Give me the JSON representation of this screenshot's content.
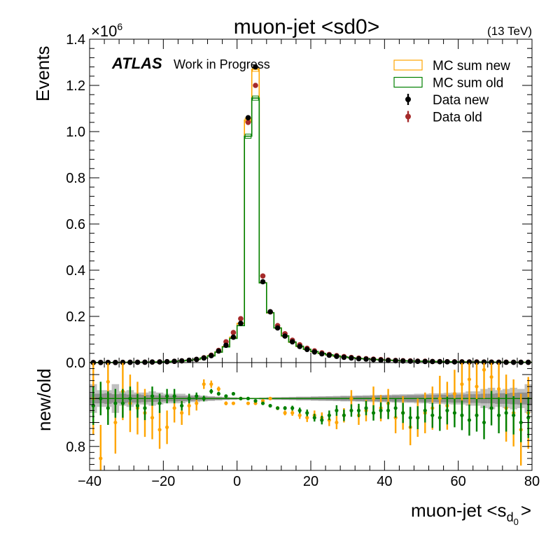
{
  "chart_data": {
    "type": "line",
    "title": "muon-jet <sd0>",
    "energy_label": "(13 TeV)",
    "atlas_label": "ATLAS",
    "atlas_sublabel": "Work in Progress",
    "y_multiplier": "×10",
    "y_multiplier_exp": "6",
    "ylabel": "Events",
    "ratio_ylabel": "new/old",
    "xlabel_main": "muon-jet <s",
    "xlabel_sub_d": "d",
    "xlabel_sub_0": "0",
    "xlabel_tail": ">",
    "xlim": [
      -40,
      80
    ],
    "ylim": [
      0,
      1.4
    ],
    "ratio_ylim": [
      0.7,
      1.15
    ],
    "x_ticks": [
      "−40",
      "−20",
      "0",
      "20",
      "40",
      "60",
      "80"
    ],
    "y_ticks": [
      "0.0",
      "0.2",
      "0.4",
      "0.6",
      "0.8",
      "1.0",
      "1.2",
      "1.4"
    ],
    "ratio_y_ticks": [
      "0.8"
    ],
    "legend": {
      "placement": "top-right",
      "entries": [
        {
          "label": "MC sum new",
          "kind": "box",
          "color": "#ffa500"
        },
        {
          "label": "MC sum old",
          "kind": "box",
          "color": "#008000"
        },
        {
          "label": "Data new",
          "kind": "marker",
          "color": "#000000"
        },
        {
          "label": "Data old",
          "kind": "marker",
          "color": "#a52a2a"
        }
      ]
    },
    "colors": {
      "mc_new": "#ffa500",
      "mc_old": "#008000",
      "data_new": "#000000",
      "data_old": "#a52a2a",
      "band_dark": "#808080",
      "band_light": "#c0c0c0"
    },
    "bin_width": 2,
    "bins_left_edge": -40,
    "series": [
      {
        "name": "MC sum new",
        "values": [
          0.0004,
          0.0005,
          0.0006,
          0.0007,
          0.0009,
          0.0011,
          0.0014,
          0.0018,
          0.0023,
          0.003,
          0.004,
          0.0055,
          0.0075,
          0.01,
          0.014,
          0.02,
          0.03,
          0.046,
          0.07,
          0.11,
          0.17,
          1.05,
          1.27,
          0.345,
          0.215,
          0.15,
          0.115,
          0.088,
          0.07,
          0.057,
          0.047,
          0.039,
          0.033,
          0.028,
          0.024,
          0.021,
          0.018,
          0.016,
          0.014,
          0.012,
          0.0105,
          0.0092,
          0.008,
          0.007,
          0.0062,
          0.0055,
          0.0049,
          0.0044,
          0.0039,
          0.0035,
          0.0031,
          0.0028,
          0.0025,
          0.0022,
          0.002,
          0.0018,
          0.0016,
          0.0014,
          0.0013,
          0.0012
        ]
      },
      {
        "name": "MC sum old",
        "values": [
          0.0004,
          0.0005,
          0.0006,
          0.0007,
          0.0009,
          0.0011,
          0.0014,
          0.0018,
          0.0023,
          0.003,
          0.004,
          0.0055,
          0.0075,
          0.01,
          0.014,
          0.02,
          0.029,
          0.045,
          0.068,
          0.105,
          0.16,
          0.98,
          1.145,
          0.345,
          0.216,
          0.15,
          0.116,
          0.089,
          0.071,
          0.058,
          0.048,
          0.04,
          0.034,
          0.029,
          0.025,
          0.021,
          0.018,
          0.016,
          0.014,
          0.012,
          0.0105,
          0.0092,
          0.008,
          0.007,
          0.0062,
          0.0055,
          0.0049,
          0.0044,
          0.0039,
          0.0035,
          0.0031,
          0.0028,
          0.0025,
          0.0022,
          0.002,
          0.0018,
          0.0016,
          0.0014,
          0.0013,
          0.0012
        ]
      },
      {
        "name": "Data new",
        "values": [
          0.0004,
          0.0005,
          0.0006,
          0.0007,
          0.0009,
          0.0011,
          0.0014,
          0.0018,
          0.0023,
          0.003,
          0.004,
          0.0055,
          0.0075,
          0.01,
          0.014,
          0.02,
          0.03,
          0.05,
          0.075,
          0.11,
          0.17,
          1.06,
          1.28,
          0.35,
          0.22,
          0.15,
          0.115,
          0.09,
          0.07,
          0.057,
          0.046,
          0.038,
          0.032,
          0.027,
          0.023,
          0.02,
          0.017,
          0.015,
          0.013,
          0.011,
          0.0095,
          0.0082,
          0.007,
          0.0062,
          0.0055,
          0.0049,
          0.0044,
          0.0039,
          0.0035,
          0.0031,
          0.0028,
          0.0025,
          0.0022,
          0.002,
          0.0018,
          0.0016,
          0.0014,
          0.0013,
          0.0012,
          0.0011
        ]
      },
      {
        "name": "Data old",
        "values": [
          0.0004,
          0.0005,
          0.0006,
          0.0007,
          0.0009,
          0.0011,
          0.0014,
          0.0018,
          0.0023,
          0.003,
          0.004,
          0.0055,
          0.0075,
          0.01,
          0.014,
          0.021,
          0.032,
          0.053,
          0.09,
          0.13,
          0.19,
          1.04,
          1.2,
          0.375,
          0.22,
          0.16,
          0.125,
          0.097,
          0.077,
          0.062,
          0.051,
          0.042,
          0.035,
          0.03,
          0.026,
          0.022,
          0.019,
          0.017,
          0.015,
          0.013,
          0.011,
          0.0095,
          0.0082,
          0.0072,
          0.0064,
          0.0057,
          0.005,
          0.0045,
          0.004,
          0.0036,
          0.0032,
          0.0029,
          0.0026,
          0.0023,
          0.0021,
          0.0019,
          0.0017,
          0.0015,
          0.0014,
          0.0013
        ]
      }
    ],
    "ratio_series": [
      {
        "name": "MC sum new",
        "ratio": 1.0
      },
      {
        "name": "MC sum old",
        "ratio": 1.0
      }
    ],
    "ratio_band_dark": [
      0.02,
      0.02,
      0.022,
      0.018,
      0.02,
      0.017,
      0.017,
      0.015,
      0.014,
      0.013,
      0.012,
      0.012,
      0.011,
      0.01,
      0.009,
      0.008,
      0.007,
      0.006,
      0.005,
      0.004,
      0.003,
      0.002,
      0.002,
      0.003,
      0.004,
      0.004,
      0.005,
      0.005,
      0.006,
      0.006,
      0.007,
      0.007,
      0.008,
      0.008,
      0.009,
      0.009,
      0.01,
      0.01,
      0.011,
      0.012,
      0.012,
      0.013,
      0.013,
      0.014,
      0.014,
      0.015,
      0.015,
      0.016,
      0.016,
      0.017,
      0.017,
      0.018,
      0.018,
      0.02,
      0.02,
      0.022,
      0.022,
      0.024,
      0.025,
      0.025
    ],
    "ratio_band_light": [
      0.06,
      0.035,
      0.035,
      0.06,
      0.03,
      0.035,
      0.025,
      0.025,
      0.03,
      0.025,
      0.02,
      0.02,
      0.02,
      0.015,
      0.015,
      0.012,
      0.01,
      0.008,
      0.006,
      0.005,
      0.004,
      0.003,
      0.003,
      0.004,
      0.005,
      0.006,
      0.006,
      0.007,
      0.008,
      0.008,
      0.009,
      0.01,
      0.01,
      0.011,
      0.012,
      0.012,
      0.013,
      0.014,
      0.015,
      0.015,
      0.016,
      0.017,
      0.018,
      0.018,
      0.02,
      0.02,
      0.022,
      0.022,
      0.024,
      0.025,
      0.025,
      0.03,
      0.03,
      0.04,
      0.045,
      0.035,
      0.04,
      0.045,
      0.04,
      0.06
    ],
    "ratio_points": [
      {
        "name": "Data new",
        "values": [
          1.0,
          0.75,
          1.07,
          0.9,
          1.03,
          0.98,
          0.96,
          0.94,
          0.92,
          0.87,
          0.88,
          0.96,
          0.94,
          0.97,
          0.98,
          1.06,
          1.06,
          1.04,
          0.98,
          0.98,
          1.0,
          0.98,
          0.98,
          0.99,
          1.0,
          0.96,
          0.94,
          0.94,
          0.93,
          0.92,
          0.93,
          0.92,
          0.91,
          0.9,
          0.93,
          1.0,
          0.93,
          0.95,
          1.0,
          0.96,
          0.98,
          0.92,
          0.94,
          0.88,
          0.92,
          0.94,
          0.96,
          1.0,
          0.97,
          1.02,
          1.06,
          1.08,
          1.05,
          1.12,
          1.09,
          1.04,
          0.96,
          0.94,
          0.87,
          0.94
        ],
        "err": [
          0.15,
          0.14,
          0.14,
          0.13,
          0.12,
          0.12,
          0.11,
          0.1,
          0.09,
          0.08,
          0.07,
          0.06,
          0.05,
          0.04,
          0.03,
          0.02,
          0.015,
          0.01,
          0.008,
          0.006,
          0.004,
          0.003,
          0.003,
          0.005,
          0.006,
          0.008,
          0.01,
          0.012,
          0.015,
          0.018,
          0.02,
          0.022,
          0.025,
          0.028,
          0.03,
          0.035,
          0.04,
          0.045,
          0.05,
          0.055,
          0.06,
          0.065,
          0.07,
          0.075,
          0.08,
          0.085,
          0.09,
          0.095,
          0.1,
          0.1,
          0.11,
          0.11,
          0.12,
          0.12,
          0.13,
          0.13,
          0.14,
          0.14,
          0.15,
          0.15
        ]
      },
      {
        "name": "Data old",
        "values": [
          0.97,
          1.0,
          0.96,
          0.98,
          0.98,
          1.0,
          0.97,
          0.96,
          1.01,
          0.98,
          1.01,
          1.01,
          0.97,
          1.0,
          1.01,
          1.0,
          1.03,
          1.02,
          1.01,
          1.02,
          1.0,
          1.0,
          0.99,
          0.98,
          0.97,
          0.96,
          0.96,
          0.96,
          0.95,
          0.94,
          0.92,
          0.91,
          0.93,
          0.95,
          0.93,
          0.95,
          0.95,
          0.96,
          0.94,
          0.95,
          0.95,
          0.96,
          0.94,
          0.92,
          0.92,
          0.95,
          0.93,
          0.92,
          0.95,
          0.94,
          0.93,
          0.91,
          0.93,
          0.9,
          0.96,
          0.93,
          0.94,
          0.93,
          0.9,
          0.92
        ],
        "err": [
          0.08,
          0.07,
          0.07,
          0.06,
          0.06,
          0.05,
          0.05,
          0.05,
          0.04,
          0.04,
          0.03,
          0.03,
          0.02,
          0.02,
          0.015,
          0.012,
          0.01,
          0.008,
          0.006,
          0.005,
          0.004,
          0.003,
          0.003,
          0.004,
          0.005,
          0.006,
          0.008,
          0.01,
          0.012,
          0.014,
          0.016,
          0.018,
          0.02,
          0.022,
          0.024,
          0.026,
          0.028,
          0.03,
          0.032,
          0.034,
          0.036,
          0.04,
          0.042,
          0.045,
          0.048,
          0.05,
          0.052,
          0.055,
          0.058,
          0.06,
          0.062,
          0.065,
          0.068,
          0.07,
          0.072,
          0.075,
          0.078,
          0.08,
          0.082,
          0.085
        ]
      }
    ]
  }
}
